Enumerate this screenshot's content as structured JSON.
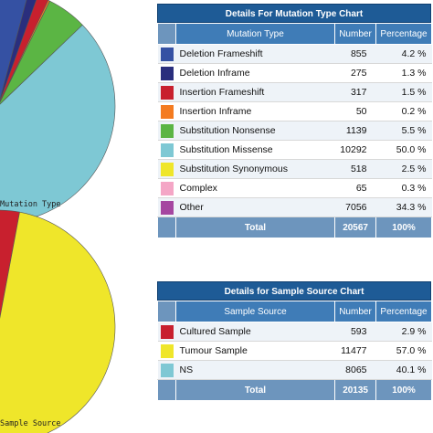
{
  "chart_data": [
    {
      "type": "pie",
      "caption": "Mutation Type",
      "categories": [
        "Deletion Frameshift",
        "Deletion Inframe",
        "Insertion Frameshift",
        "Insertion Inframe",
        "Substitution Nonsense",
        "Substitution Missense",
        "Substitution Synonymous",
        "Complex",
        "Other"
      ],
      "values": [
        855,
        275,
        317,
        50,
        1139,
        10292,
        518,
        65,
        7056
      ],
      "colors": [
        "#3551a3",
        "#2a2e7d",
        "#c8202e",
        "#f47b20",
        "#5bb544",
        "#7ec8d4",
        "#efe62a",
        "#f4a6c6",
        "#a546a0"
      ]
    },
    {
      "type": "pie",
      "caption": "Sample Source",
      "categories": [
        "Cultured Sample",
        "Tumour Sample",
        "NS"
      ],
      "values": [
        593,
        11477,
        8065
      ],
      "colors": [
        "#c8202e",
        "#efe62a",
        "#7ec8d4"
      ]
    }
  ],
  "table1": {
    "title": "Details For Mutation Type Chart",
    "headers": [
      "Mutation Type",
      "Number",
      "Percentage"
    ],
    "rows": [
      {
        "label": "Deletion Frameshift",
        "number": "855",
        "pct": "4.2 %"
      },
      {
        "label": "Deletion Inframe",
        "number": "275",
        "pct": "1.3 %"
      },
      {
        "label": "Insertion Frameshift",
        "number": "317",
        "pct": "1.5 %"
      },
      {
        "label": "Insertion Inframe",
        "number": "50",
        "pct": "0.2 %"
      },
      {
        "label": "Substitution Nonsense",
        "number": "1139",
        "pct": "5.5 %"
      },
      {
        "label": "Substitution Missense",
        "number": "10292",
        "pct": "50.0 %"
      },
      {
        "label": "Substitution Synonymous",
        "number": "518",
        "pct": "2.5 %"
      },
      {
        "label": "Complex",
        "number": "65",
        "pct": "0.3 %"
      },
      {
        "label": "Other",
        "number": "7056",
        "pct": "34.3 %"
      }
    ],
    "total": {
      "label": "Total",
      "number": "20567",
      "pct": "100%"
    }
  },
  "table2": {
    "title": "Details for Sample Source Chart",
    "headers": [
      "Sample Source",
      "Number",
      "Percentage"
    ],
    "rows": [
      {
        "label": "Cultured Sample",
        "number": "593",
        "pct": "2.9 %"
      },
      {
        "label": "Tumour Sample",
        "number": "11477",
        "pct": "57.0 %"
      },
      {
        "label": "NS",
        "number": "8065",
        "pct": "40.1 %"
      }
    ],
    "total": {
      "label": "Total",
      "number": "20135",
      "pct": "100%"
    }
  }
}
